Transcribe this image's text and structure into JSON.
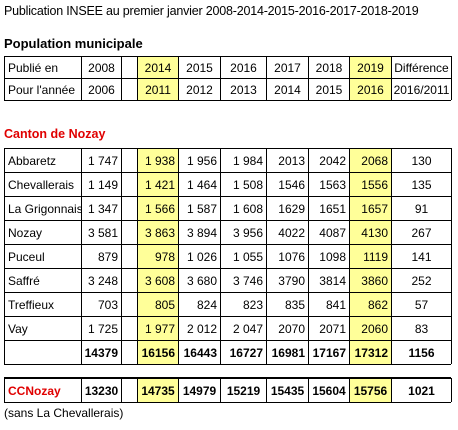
{
  "title": "Publication INSEE  au premier janvier 2008-2014-2015-2016-2017-2018-2019",
  "section_heading": "Population municipale",
  "header_rows": [
    {
      "label": "Publié en",
      "values": [
        "2008",
        "",
        "2014",
        "2015",
        "2016",
        "2017",
        "2018",
        "2019",
        "Différence"
      ]
    },
    {
      "label": "Pour l'année",
      "values": [
        "2006",
        "",
        "2011",
        "2012",
        "2013",
        "2014",
        "2015",
        "2016",
        "2016/2011"
      ]
    }
  ],
  "canton_heading": "Canton de Nozay",
  "communes": [
    {
      "name": "Abbaretz",
      "values": [
        "1 747",
        "",
        "1 938",
        "1 956",
        "1 984",
        "2013",
        "2042",
        "2068",
        "130"
      ]
    },
    {
      "name": "Chevallerais",
      "values": [
        "1 149",
        "",
        "1 421",
        "1 464",
        "1 508",
        "1546",
        "1563",
        "1556",
        "135"
      ]
    },
    {
      "name": "La Grigonnais",
      "values": [
        "1 347",
        "",
        "1 566",
        "1 587",
        "1 608",
        "1629",
        "1651",
        "1657",
        "91"
      ]
    },
    {
      "name": "Nozay",
      "values": [
        "3 581",
        "",
        "3 863",
        "3 894",
        "3 956",
        "4022",
        "4087",
        "4130",
        "267"
      ]
    },
    {
      "name": "Puceul",
      "values": [
        "879",
        "",
        "978",
        "1 026",
        "1 055",
        "1076",
        "1098",
        "1119",
        "141"
      ]
    },
    {
      "name": "Saffré",
      "values": [
        "3 248",
        "",
        "3 608",
        "3 680",
        "3 746",
        "3790",
        "3814",
        "3860",
        "252"
      ]
    },
    {
      "name": "Treffieux",
      "values": [
        "703",
        "",
        "805",
        "824",
        "823",
        "835",
        "841",
        "862",
        "57"
      ]
    },
    {
      "name": "Vay",
      "values": [
        "1 725",
        "",
        "1 977",
        "2 012",
        "2 047",
        "2070",
        "2071",
        "2060",
        "83"
      ]
    }
  ],
  "totals": {
    "label": "",
    "values": [
      "14379",
      "",
      "16156",
      "16443",
      "16727",
      "16981",
      "17167",
      "17312",
      "1156"
    ]
  },
  "ccnozay": {
    "label": "CCNozay",
    "values": [
      "13230",
      "",
      "14735",
      "14979",
      "15219",
      "15435",
      "15604",
      "15756",
      "1021"
    ]
  },
  "note": "(sans La Chevallerais)",
  "colors": {
    "highlight": "#ffff99",
    "red": "#e00000"
  }
}
